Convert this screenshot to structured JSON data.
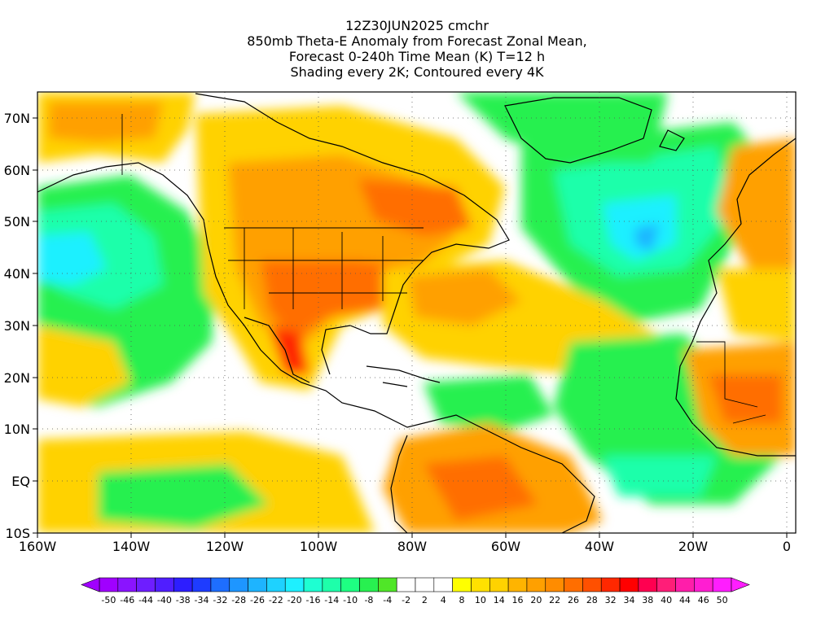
{
  "header": {
    "title_lines": [
      "12Z30JUN2025 cmchr",
      "850mb Theta-E Anomaly from Forecast Zonal Mean,",
      "Forecast 0-240h Time Mean (K) T=12 h",
      "Shading every 2K; Contoured every 4K"
    ]
  },
  "axes": {
    "lon_labels": [
      "160W",
      "140W",
      "120W",
      "100W",
      "80W",
      "60W",
      "40W",
      "20W",
      "0"
    ],
    "lat_labels": [
      "70N",
      "60N",
      "50N",
      "40N",
      "30N",
      "20N",
      "10N",
      "EQ",
      "10S"
    ]
  },
  "colorbar": {
    "labels": [
      "-50",
      "-46",
      "-44",
      "-40",
      "-38",
      "-34",
      "-32",
      "-28",
      "-26",
      "-22",
      "-20",
      "-16",
      "-14",
      "-10",
      "-8",
      "-4",
      "-2",
      "2",
      "4",
      "8",
      "10",
      "14",
      "16",
      "20",
      "22",
      "26",
      "28",
      "32",
      "34",
      "38",
      "40",
      "44",
      "46",
      "50"
    ],
    "colors": [
      "#a000ff",
      "#8a14ff",
      "#6e1eff",
      "#501eff",
      "#2d1eff",
      "#1e3cff",
      "#1e6eff",
      "#1e96ff",
      "#1eb4ff",
      "#1ed2ff",
      "#1ef0ff",
      "#1effd2",
      "#1effaa",
      "#1eff82",
      "#28f050",
      "#50e628",
      "#ffffff",
      "#ffffff",
      "#ffffff",
      "#ffff00",
      "#ffe100",
      "#ffd200",
      "#ffb400",
      "#ffa000",
      "#ff8c00",
      "#ff6e00",
      "#ff5000",
      "#ff2800",
      "#ff0000",
      "#ff0050",
      "#ff1e78",
      "#ff1eaa",
      "#ff1ed2",
      "#ff1eff"
    ]
  },
  "map": {
    "background_color": "#ffffff",
    "palette": {
      "warm_yellow": "#ffd200",
      "warm_orange": "#ffa000",
      "hot_orange": "#ff6e00",
      "hot_red": "#ff2800",
      "cool_green": "#28f050",
      "cool_teal": "#1effaa",
      "cold_cyan": "#1ef0ff",
      "cold_blue": "#1eb4ff"
    }
  }
}
